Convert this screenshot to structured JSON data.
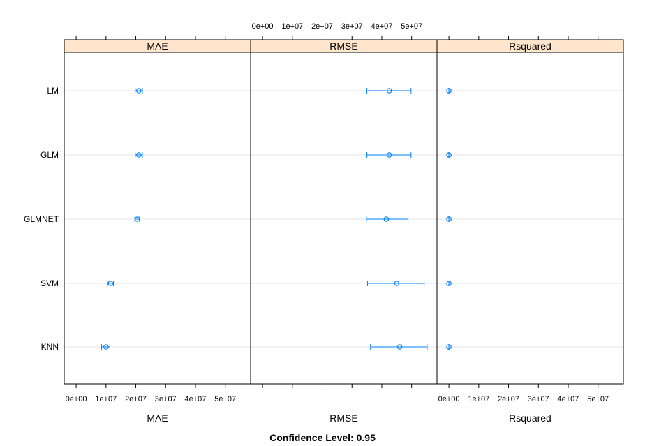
{
  "chart_data": {
    "type": "dotplot-interval",
    "categories": [
      "LM",
      "GLM",
      "GLMNET",
      "SVM",
      "KNN"
    ],
    "panels": [
      {
        "name": "MAE",
        "xlabel": "MAE",
        "xlim": [
          -4000000,
          58500000
        ],
        "ticks": [
          "0e+00",
          "1e+07",
          "2e+07",
          "3e+07",
          "4e+07",
          "5e+07"
        ],
        "tick_values": [
          0,
          10000000,
          20000000,
          30000000,
          40000000,
          50000000
        ],
        "tick_labels_position": "bottom",
        "estimates": [
          21000000,
          21000000,
          20500000,
          11500000,
          10000000
        ],
        "lower": [
          19800000,
          19800000,
          19700000,
          10500000,
          8500000
        ],
        "upper": [
          22200000,
          22200000,
          21300000,
          12500000,
          11300000
        ]
      },
      {
        "name": "RMSE",
        "xlabel": "RMSE",
        "xlim": [
          -4000000,
          58500000
        ],
        "ticks": [
          "0e+00",
          "1e+07",
          "2e+07",
          "3e+07",
          "4e+07",
          "5e+07"
        ],
        "tick_values": [
          0,
          10000000,
          20000000,
          30000000,
          40000000,
          50000000
        ],
        "tick_labels_position": "top",
        "estimates": [
          42500000,
          42500000,
          41500000,
          45000000,
          46000000
        ],
        "lower": [
          35000000,
          35000000,
          34800000,
          35200000,
          36200000
        ],
        "upper": [
          49800000,
          49800000,
          48800000,
          54200000,
          55200000
        ]
      },
      {
        "name": "Rsquared",
        "xlabel": "Rsquared",
        "xlim": [
          -4000000,
          58500000
        ],
        "ticks": [
          "0e+00",
          "1e+07",
          "2e+07",
          "3e+07",
          "4e+07",
          "5e+07"
        ],
        "tick_values": [
          0,
          10000000,
          20000000,
          30000000,
          40000000,
          50000000
        ],
        "tick_labels_position": "bottom",
        "estimates": [
          0.1,
          0.1,
          0.1,
          0.1,
          0.1
        ],
        "lower": [
          0,
          0,
          0,
          0,
          0
        ],
        "upper": [
          0.2,
          0.2,
          0.2,
          0.2,
          0.2
        ]
      }
    ],
    "footer": "Confidence Level: 0.95",
    "colors": {
      "strip_fill": "#ffe5cc",
      "point": "#0080ff",
      "gridline": "#e6e6e6",
      "frame": "#000000"
    },
    "grid": true
  }
}
